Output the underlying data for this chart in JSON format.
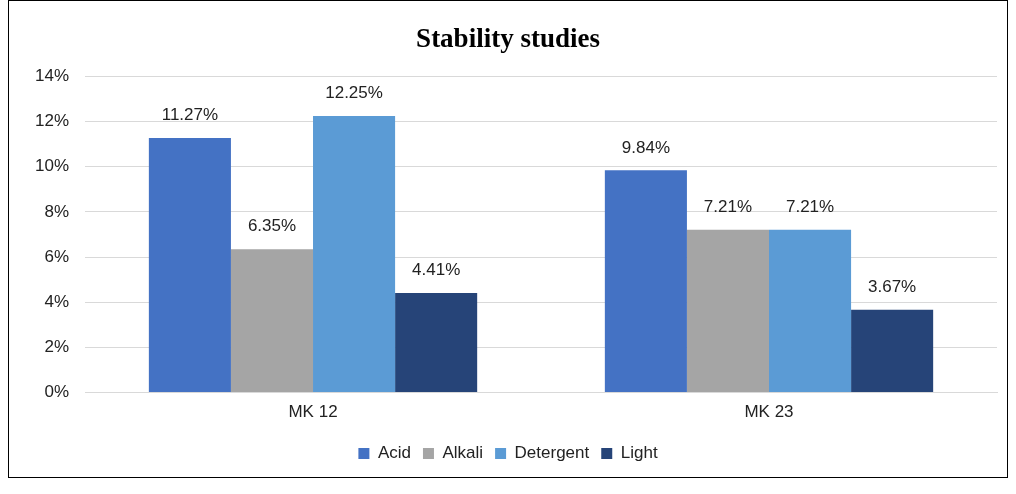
{
  "chart_data": {
    "type": "bar",
    "title": "Stability studies",
    "categories": [
      "MK 12",
      "MK 23"
    ],
    "series": [
      {
        "name": "Acid",
        "color": "#4472c4",
        "values": [
          11.27,
          9.84
        ],
        "value_labels": [
          "11.27%",
          "9.84%"
        ]
      },
      {
        "name": "Alkali",
        "color": "#a5a5a5",
        "values": [
          6.35,
          7.21
        ],
        "value_labels": [
          "6.35%",
          "7.21%"
        ]
      },
      {
        "name": "Detergent",
        "color": "#5b9bd5",
        "values": [
          12.25,
          7.21
        ],
        "value_labels": [
          "12.25%",
          "7.21%"
        ]
      },
      {
        "name": "Light",
        "color": "#264478",
        "values": [
          4.41,
          3.67
        ],
        "value_labels": [
          "4.41%",
          "3.67%"
        ]
      }
    ],
    "ylim": [
      0,
      14
    ],
    "yticks": [
      {
        "value": 0,
        "label": "0%"
      },
      {
        "value": 2,
        "label": "2%"
      },
      {
        "value": 4,
        "label": "4%"
      },
      {
        "value": 6,
        "label": "6%"
      },
      {
        "value": 8,
        "label": "8%"
      },
      {
        "value": 10,
        "label": "10%"
      },
      {
        "value": 12,
        "label": "12%"
      },
      {
        "value": 14,
        "label": "14%"
      }
    ],
    "grid": "y",
    "legend": "bottom"
  }
}
